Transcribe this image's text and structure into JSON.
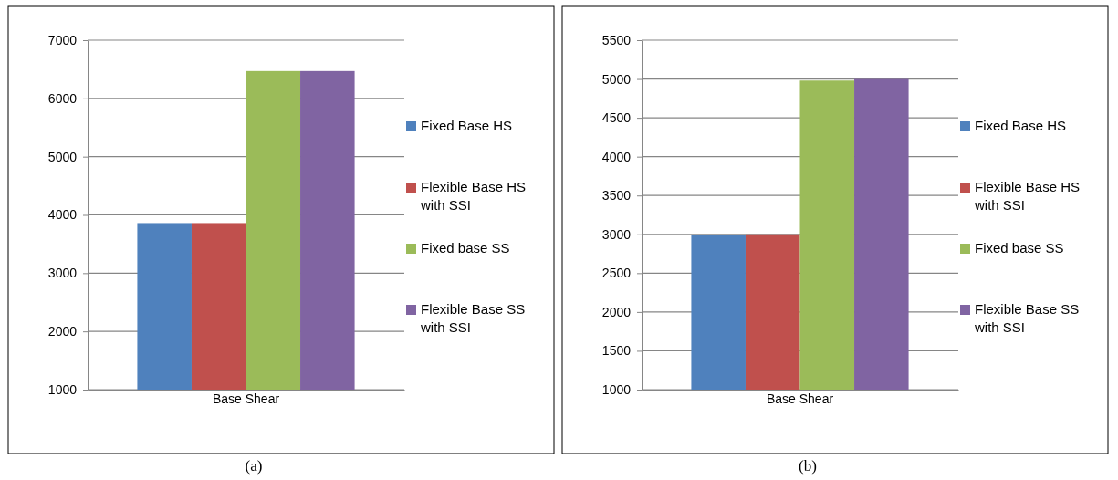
{
  "chart_data": [
    {
      "type": "bar",
      "categories": [
        "Base Shear"
      ],
      "series": [
        {
          "name": "Fixed Base HS",
          "color": "#4f81bd",
          "values": [
            3860
          ]
        },
        {
          "name": "Flexible Base HS with SSI",
          "color": "#c0504d",
          "values": [
            3860
          ]
        },
        {
          "name": "Fixed base SS",
          "color": "#9bbb59",
          "values": [
            6470
          ]
        },
        {
          "name": "Flexible Base SS with SSI",
          "color": "#8064a2",
          "values": [
            6470
          ]
        }
      ],
      "ylim": [
        1000,
        7000
      ],
      "yticks": [
        1000,
        2000,
        3000,
        4000,
        5000,
        6000,
        7000
      ],
      "grid": "y",
      "legend": "right",
      "annotations": [
        "(a)"
      ]
    },
    {
      "type": "bar",
      "categories": [
        "Base Shear"
      ],
      "series": [
        {
          "name": "Fixed Base HS",
          "color": "#4f81bd",
          "values": [
            2990
          ]
        },
        {
          "name": "Flexible Base HS with SSI",
          "color": "#c0504d",
          "values": [
            3000
          ]
        },
        {
          "name": "Fixed base SS",
          "color": "#9bbb59",
          "values": [
            4980
          ]
        },
        {
          "name": "Flexible Base SS with SSI",
          "color": "#8064a2",
          "values": [
            5000
          ]
        }
      ],
      "ylim": [
        1000,
        5500
      ],
      "yticks": [
        1000,
        1500,
        2000,
        2500,
        3000,
        3500,
        4000,
        4500,
        5000,
        5500
      ],
      "grid": "y",
      "legend": "right",
      "annotations": [
        "(b)"
      ]
    }
  ]
}
